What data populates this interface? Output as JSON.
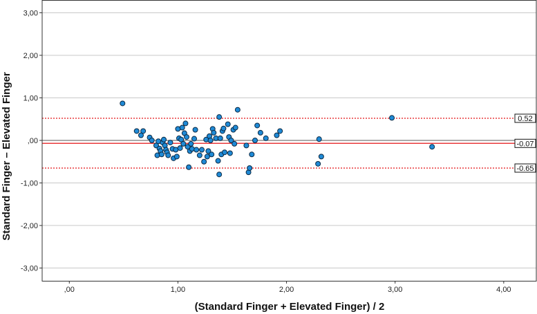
{
  "chart_data": {
    "type": "scatter",
    "title": "",
    "xlabel": "(Standard Finger + Elevated Finger) / 2",
    "ylabel": "Standard Finger – Elevated Finger",
    "xlim": [
      -0.25,
      4.3
    ],
    "ylim": [
      -3.3,
      3.3
    ],
    "x_ticks": [
      {
        "value": 0,
        "label": ",00"
      },
      {
        "value": 1,
        "label": "1,00"
      },
      {
        "value": 2,
        "label": "2,00"
      },
      {
        "value": 3,
        "label": "3,00"
      },
      {
        "value": 4,
        "label": "4,00"
      }
    ],
    "y_ticks": [
      {
        "value": 3,
        "label": "3,00"
      },
      {
        "value": 2,
        "label": "2,00"
      },
      {
        "value": 1,
        "label": "1,00"
      },
      {
        "value": 0,
        "label": ",00"
      },
      {
        "value": -1,
        "label": "-1,00"
      },
      {
        "value": -2,
        "label": "-2,00"
      },
      {
        "value": -3,
        "label": "-3,00"
      }
    ],
    "grid": "horizontal",
    "reference_lines": [
      {
        "value": 0.52,
        "label": "0.52",
        "style": "dotted",
        "color": "#e8383b"
      },
      {
        "value": -0.07,
        "label": "-0.07",
        "style": "solid",
        "color": "#e8383b"
      },
      {
        "value": -0.65,
        "label": "-0.65",
        "style": "dotted",
        "color": "#e8383b"
      }
    ],
    "zero_line_color": "#555555",
    "point_color": "#1f8ad6",
    "point_edge_color": "#0c2a44",
    "points": [
      [
        0.49,
        0.87
      ],
      [
        0.62,
        0.22
      ],
      [
        0.66,
        0.12
      ],
      [
        0.68,
        0.22
      ],
      [
        0.74,
        0.07
      ],
      [
        0.76,
        0.0
      ],
      [
        0.8,
        -0.12
      ],
      [
        0.81,
        -0.35
      ],
      [
        0.82,
        -0.02
      ],
      [
        0.83,
        -0.19
      ],
      [
        0.84,
        -0.25
      ],
      [
        0.85,
        -0.33
      ],
      [
        0.86,
        -0.05
      ],
      [
        0.87,
        0.02
      ],
      [
        0.88,
        -0.12
      ],
      [
        0.89,
        -0.22
      ],
      [
        0.9,
        -0.28
      ],
      [
        0.91,
        -0.35
      ],
      [
        0.93,
        -0.05
      ],
      [
        0.95,
        -0.2
      ],
      [
        0.96,
        -0.42
      ],
      [
        0.98,
        -0.22
      ],
      [
        0.99,
        -0.38
      ],
      [
        1.0,
        0.27
      ],
      [
        1.01,
        0.05
      ],
      [
        1.02,
        -0.18
      ],
      [
        1.03,
        0.02
      ],
      [
        1.04,
        0.3
      ],
      [
        1.05,
        -0.08
      ],
      [
        1.06,
        0.17
      ],
      [
        1.07,
        0.4
      ],
      [
        1.08,
        0.08
      ],
      [
        1.09,
        -0.15
      ],
      [
        1.1,
        -0.63
      ],
      [
        1.11,
        -0.25
      ],
      [
        1.12,
        -0.08
      ],
      [
        1.13,
        -0.2
      ],
      [
        1.15,
        0.04
      ],
      [
        1.16,
        0.25
      ],
      [
        1.17,
        -0.22
      ],
      [
        1.2,
        -0.35
      ],
      [
        1.22,
        -0.22
      ],
      [
        1.24,
        -0.5
      ],
      [
        1.26,
        0.02
      ],
      [
        1.27,
        -0.38
      ],
      [
        1.28,
        -0.25
      ],
      [
        1.29,
        0.1
      ],
      [
        1.3,
        0.0
      ],
      [
        1.31,
        -0.33
      ],
      [
        1.32,
        0.27
      ],
      [
        1.33,
        0.18
      ],
      [
        1.35,
        0.05
      ],
      [
        1.37,
        -0.48
      ],
      [
        1.38,
        0.55
      ],
      [
        1.38,
        -0.8
      ],
      [
        1.39,
        0.05
      ],
      [
        1.4,
        -0.33
      ],
      [
        1.41,
        0.22
      ],
      [
        1.42,
        0.28
      ],
      [
        1.43,
        -0.28
      ],
      [
        1.46,
        0.38
      ],
      [
        1.47,
        0.08
      ],
      [
        1.48,
        -0.3
      ],
      [
        1.49,
        0.0
      ],
      [
        1.51,
        0.25
      ],
      [
        1.52,
        -0.08
      ],
      [
        1.53,
        0.3
      ],
      [
        1.55,
        0.72
      ],
      [
        1.63,
        -0.12
      ],
      [
        1.65,
        -0.75
      ],
      [
        1.66,
        -0.65
      ],
      [
        1.68,
        -0.33
      ],
      [
        1.71,
        0.0
      ],
      [
        1.73,
        0.35
      ],
      [
        1.76,
        0.18
      ],
      [
        1.81,
        0.05
      ],
      [
        1.91,
        0.12
      ],
      [
        1.94,
        0.22
      ],
      [
        2.29,
        -0.55
      ],
      [
        2.3,
        0.03
      ],
      [
        2.32,
        -0.38
      ],
      [
        2.97,
        0.53
      ],
      [
        3.34,
        -0.15
      ]
    ]
  }
}
